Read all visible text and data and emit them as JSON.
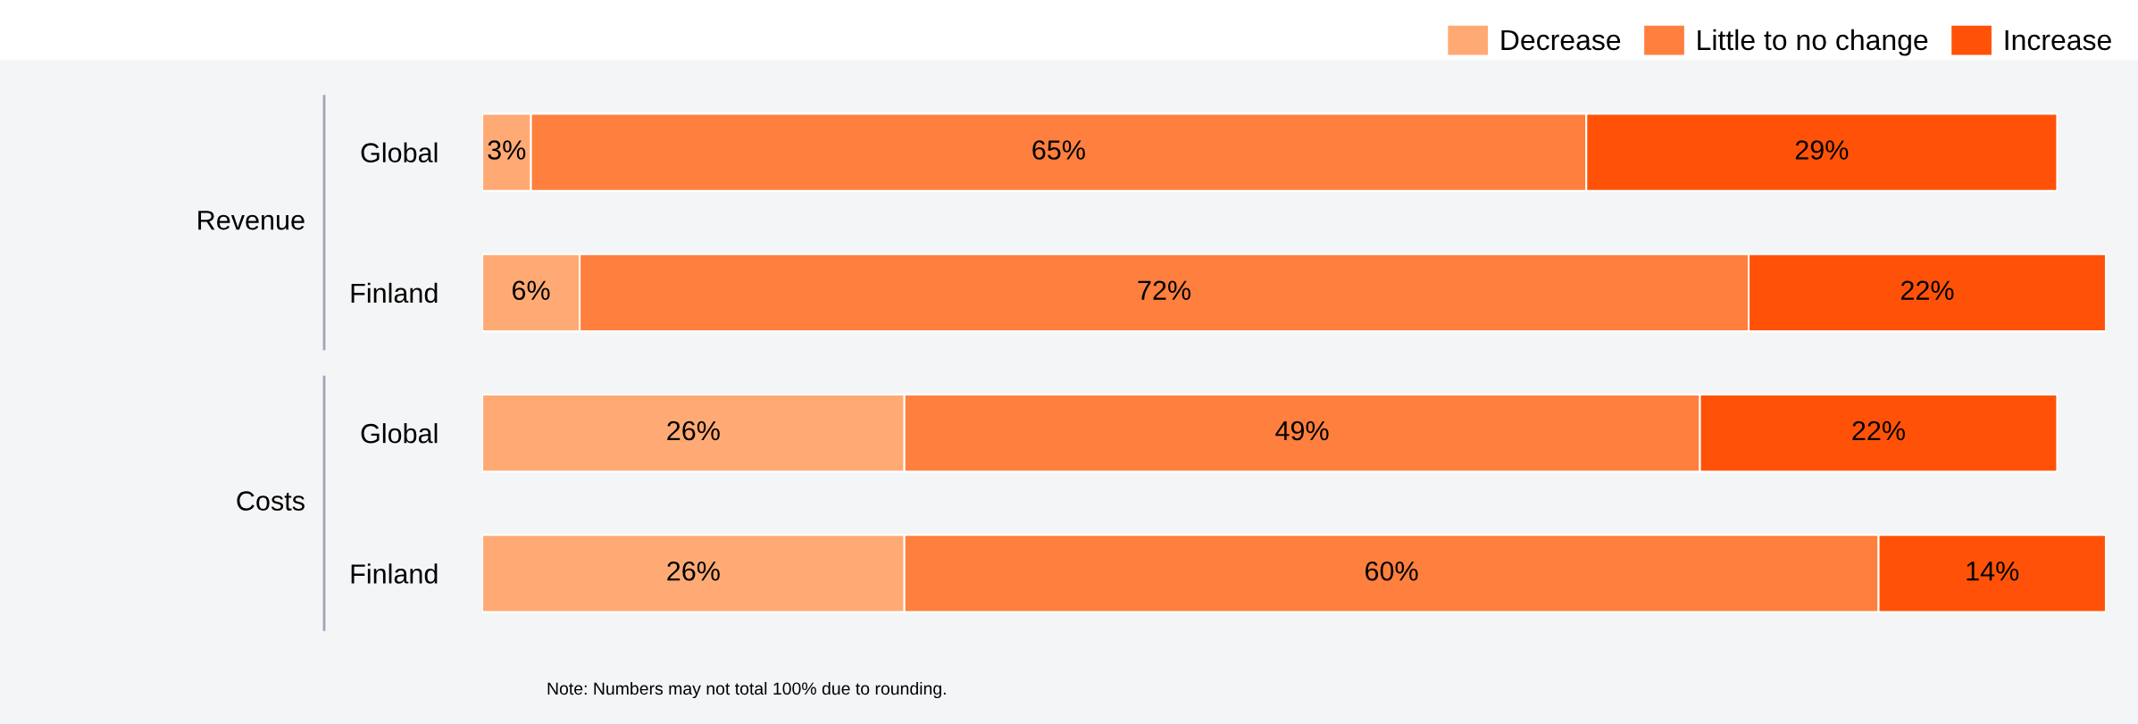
{
  "chart_data": {
    "type": "bar",
    "orientation": "horizontal",
    "stacked": true,
    "grid": false,
    "legend": "top right",
    "categories": [
      "Global",
      "Finland",
      "Global",
      "Finland"
    ],
    "series": [
      {
        "name": "Decrease",
        "color": "#ffaa74",
        "values": [
          3,
          6,
          26,
          26
        ],
        "value_labels": [
          "3%",
          "6%",
          "26%",
          "26%"
        ]
      },
      {
        "name": "Little to no change",
        "color": "#ff7f3e",
        "values": [
          65,
          72,
          49,
          60
        ],
        "value_labels": [
          "65%",
          "72%",
          "49%",
          "60%"
        ]
      },
      {
        "name": "Increase",
        "color": "#ff5208",
        "values": [
          29,
          22,
          22,
          14
        ],
        "value_labels": [
          "29%",
          "22%",
          "22%",
          "14%"
        ]
      }
    ],
    "annotations": [
      "Revenue",
      "Costs",
      "Note: Numbers may not total 100% due to rounding."
    ]
  }
}
